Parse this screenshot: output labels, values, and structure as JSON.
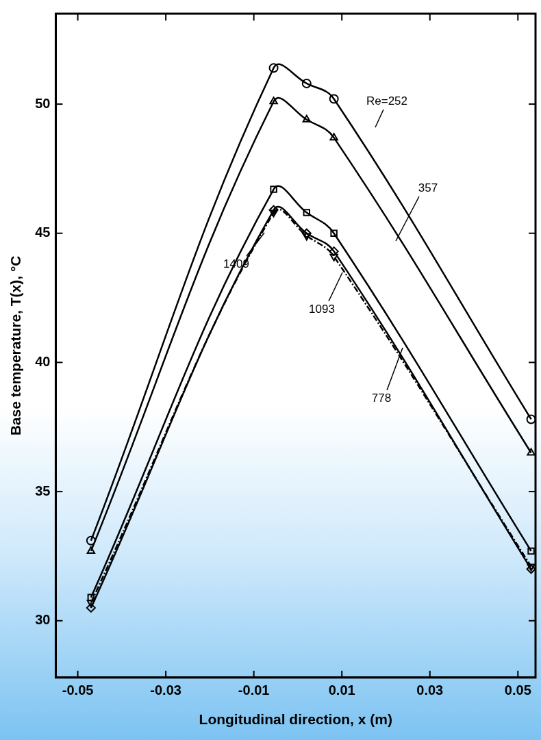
{
  "chart_data": {
    "type": "line",
    "x_label": "Longitudinal direction, x (m)",
    "y_label": "Base temperature, T(x), °C",
    "x": [
      -0.047,
      -0.0055,
      0.002,
      0.0082,
      0.053
    ],
    "series": [
      {
        "name": "Re=252",
        "color": "#000000",
        "marker": "circle",
        "line_style": "solid",
        "values": [
          33.1,
          51.4,
          50.8,
          50.2,
          37.8
        ]
      },
      {
        "name": "357",
        "color": "#000000",
        "marker": "triangle",
        "line_style": "solid",
        "values": [
          32.7,
          50.1,
          49.4,
          48.7,
          36.5
        ]
      },
      {
        "name": "778",
        "color": "#000000",
        "marker": "square",
        "line_style": "solid",
        "values": [
          30.9,
          46.7,
          45.8,
          45.0,
          32.7
        ]
      },
      {
        "name": "1093",
        "color": "#000000",
        "marker": "diamond",
        "line_style": "solid",
        "values": [
          30.5,
          45.9,
          45.0,
          44.3,
          32.0
        ]
      },
      {
        "name": "1409",
        "color": "#000000",
        "marker": "triangle-down",
        "line_style": "dashdot",
        "values": [
          30.7,
          45.8,
          44.9,
          44.1,
          32.1
        ]
      }
    ],
    "xlim": [
      -0.055,
      0.054
    ],
    "xticks": [
      -0.05,
      -0.03,
      -0.01,
      0.01,
      0.03,
      0.05
    ],
    "ylim": [
      27.8,
      53.5
    ],
    "yticks": [
      30,
      35,
      40,
      45,
      50
    ],
    "grid": false
  }
}
